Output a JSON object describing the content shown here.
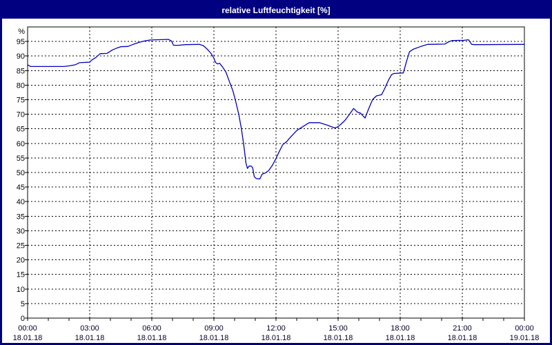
{
  "window": {
    "title": "relative Luftfeuchtigkeit [%]"
  },
  "colors": {
    "titlebar_bg": "#000080",
    "titlebar_text": "#ffffff",
    "window_border": "#000080",
    "plot_bg": "#ffffff",
    "grid": "#000000",
    "axis": "#000000",
    "line": "#0000bd",
    "y_label_color": "#000000",
    "x_label_color": "#000028"
  },
  "chart_data": {
    "type": "line",
    "title": "relative Luftfeuchtigkeit [%]",
    "ylabel": "%",
    "ylim": [
      0,
      100
    ],
    "ytick_min": 0,
    "ytick_max": 95,
    "ytick_step": 5,
    "grid": "dashed",
    "legend_position": "none",
    "x_hours_range": [
      0,
      24
    ],
    "x_minor_tick_every_hours": 1,
    "x_major_ticks": [
      {
        "hour": 0,
        "time": "00:00",
        "date": "18.01.18"
      },
      {
        "hour": 3,
        "time": "03:00",
        "date": "18.01.18"
      },
      {
        "hour": 6,
        "time": "06:00",
        "date": "18.01.18"
      },
      {
        "hour": 9,
        "time": "09:00",
        "date": "18.01.18"
      },
      {
        "hour": 12,
        "time": "12:00",
        "date": "18.01.18"
      },
      {
        "hour": 15,
        "time": "15:00",
        "date": "18.01.18"
      },
      {
        "hour": 18,
        "time": "18:00",
        "date": "18.01.18"
      },
      {
        "hour": 21,
        "time": "21:00",
        "date": "18.01.18"
      },
      {
        "hour": 24,
        "time": "00:00",
        "date": "19.01.18"
      }
    ],
    "series": [
      {
        "name": "relative Luftfeuchtigkeit",
        "unit": "%",
        "color": "#0000bd",
        "points": [
          [
            0.0,
            87.0
          ],
          [
            0.15,
            86.4
          ],
          [
            1.75,
            86.4
          ],
          [
            2.0,
            86.6
          ],
          [
            2.3,
            87.0
          ],
          [
            2.5,
            87.7
          ],
          [
            3.0,
            87.9
          ],
          [
            3.1,
            88.6
          ],
          [
            3.3,
            89.5
          ],
          [
            3.5,
            90.8
          ],
          [
            3.83,
            90.9
          ],
          [
            4.1,
            92.1
          ],
          [
            4.3,
            92.7
          ],
          [
            4.5,
            93.2
          ],
          [
            4.85,
            93.3
          ],
          [
            5.1,
            94.0
          ],
          [
            5.35,
            94.6
          ],
          [
            5.6,
            95.1
          ],
          [
            5.9,
            95.5
          ],
          [
            6.2,
            95.6
          ],
          [
            6.8,
            95.7
          ],
          [
            6.95,
            95.2
          ],
          [
            7.05,
            93.7
          ],
          [
            7.3,
            93.7
          ],
          [
            7.6,
            93.9
          ],
          [
            8.3,
            94.0
          ],
          [
            8.5,
            93.5
          ],
          [
            8.7,
            92.2
          ],
          [
            8.85,
            91.0
          ],
          [
            9.0,
            89.3
          ],
          [
            9.08,
            87.8
          ],
          [
            9.17,
            87.3
          ],
          [
            9.28,
            87.5
          ],
          [
            9.42,
            86.2
          ],
          [
            9.58,
            84.5
          ],
          [
            9.75,
            81.2
          ],
          [
            9.92,
            78.0
          ],
          [
            10.05,
            74.5
          ],
          [
            10.2,
            70.0
          ],
          [
            10.33,
            65.0
          ],
          [
            10.45,
            59.0
          ],
          [
            10.55,
            53.2
          ],
          [
            10.62,
            51.4
          ],
          [
            10.7,
            52.2
          ],
          [
            10.8,
            52.2
          ],
          [
            10.87,
            51.7
          ],
          [
            10.95,
            48.6
          ],
          [
            11.05,
            47.9
          ],
          [
            11.22,
            47.8
          ],
          [
            11.33,
            49.4
          ],
          [
            11.5,
            49.9
          ],
          [
            11.65,
            50.7
          ],
          [
            11.83,
            52.5
          ],
          [
            12.0,
            54.8
          ],
          [
            12.17,
            57.4
          ],
          [
            12.33,
            59.6
          ],
          [
            12.5,
            60.5
          ],
          [
            12.67,
            61.9
          ],
          [
            13.0,
            64.4
          ],
          [
            13.33,
            65.9
          ],
          [
            13.6,
            67.1
          ],
          [
            14.1,
            67.1
          ],
          [
            14.5,
            66.2
          ],
          [
            14.83,
            65.3
          ],
          [
            15.0,
            65.7
          ],
          [
            15.17,
            66.8
          ],
          [
            15.33,
            67.9
          ],
          [
            15.55,
            70.0
          ],
          [
            15.75,
            72.0
          ],
          [
            15.92,
            70.8
          ],
          [
            16.08,
            70.4
          ],
          [
            16.3,
            68.7
          ],
          [
            16.5,
            72.3
          ],
          [
            16.67,
            75.1
          ],
          [
            16.85,
            76.3
          ],
          [
            17.1,
            76.7
          ],
          [
            17.25,
            78.8
          ],
          [
            17.42,
            81.5
          ],
          [
            17.58,
            83.6
          ],
          [
            17.7,
            84.0
          ],
          [
            18.15,
            84.2
          ],
          [
            18.3,
            88.0
          ],
          [
            18.45,
            91.5
          ],
          [
            18.65,
            92.4
          ],
          [
            19.0,
            93.3
          ],
          [
            19.33,
            94.0
          ],
          [
            20.15,
            94.1
          ],
          [
            20.35,
            94.9
          ],
          [
            20.5,
            95.3
          ],
          [
            21.1,
            95.4
          ],
          [
            21.3,
            95.6
          ],
          [
            21.45,
            94.0
          ],
          [
            21.6,
            93.9
          ],
          [
            24.0,
            94.0
          ]
        ]
      }
    ]
  }
}
